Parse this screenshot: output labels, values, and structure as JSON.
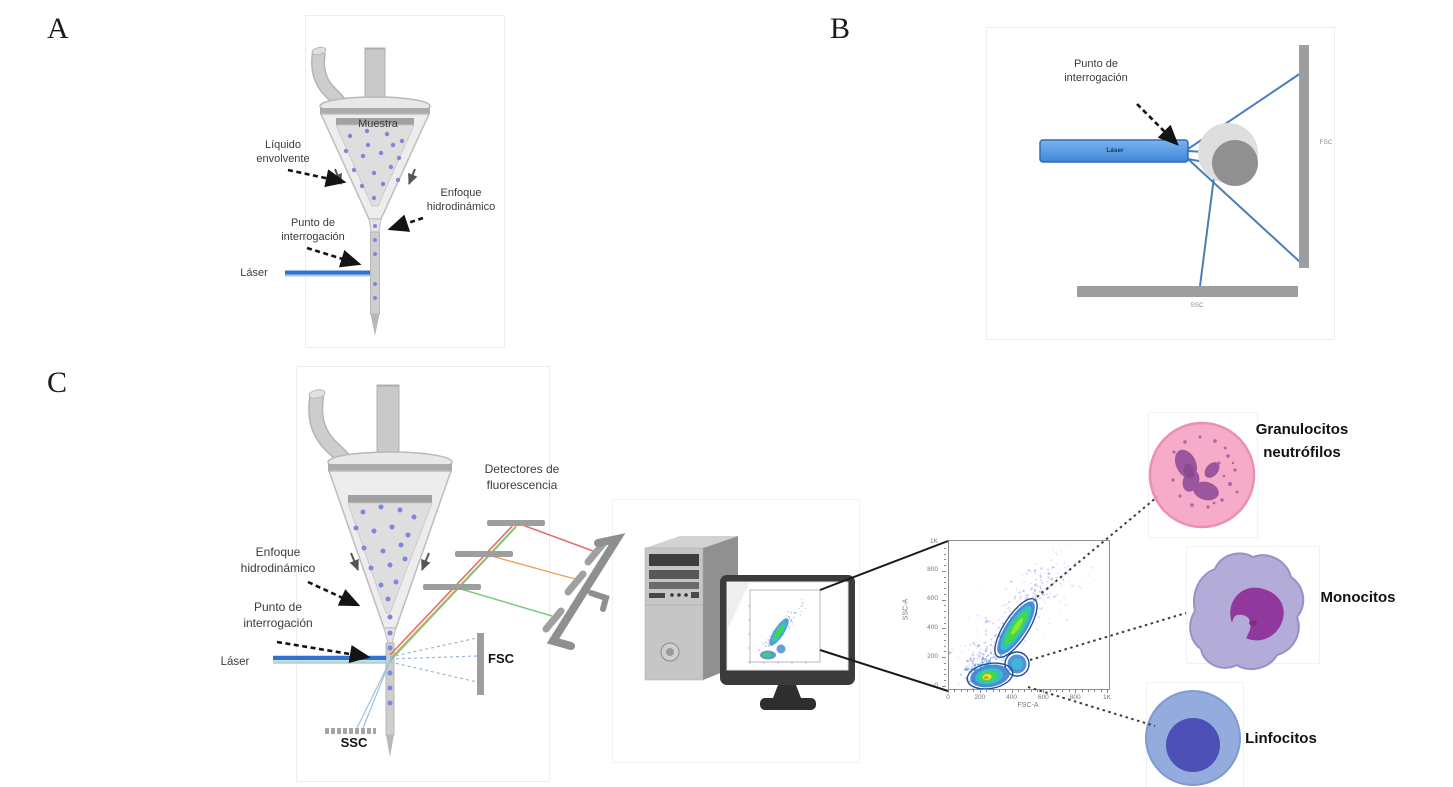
{
  "figure": {
    "panel_a": {
      "letter": "A",
      "muestra": "Muestra",
      "liquido_envolvente": "Líquido\nenvolvente",
      "enfoque_hidrodinamico": "Enfoque\nhidrodinámico",
      "punto_interrogacion": "Punto de\ninterrogación",
      "laser": "Láser"
    },
    "panel_b": {
      "letter": "B",
      "punto_interrogacion": "Punto de\ninterrogación",
      "laser": "Láser",
      "fsc": "FSC",
      "ssc": "SSC"
    },
    "panel_c": {
      "letter": "C",
      "detectores": "Detectores de\nfluorescencia",
      "enfoque_hidrodinamico": "Enfoque\nhidrodinámico",
      "punto_interrogacion": "Punto de\ninterrogación",
      "laser": "Láser",
      "fsc": "FSC",
      "ssc": "SSC",
      "plot": {
        "xlabel": "FSC-A",
        "ylabel": "SSC-A",
        "x_ticks": [
          "0",
          "200",
          "400",
          "600",
          "800",
          "1K"
        ],
        "y_ticks": [
          "0",
          "200",
          "400",
          "600",
          "800",
          "1K"
        ],
        "gated_populations": [
          "Granulocitos neutrófilos",
          "Monocitos",
          "Linfocitos"
        ]
      },
      "cells": {
        "granulocitos": "Granulocitos\nneutrófilos",
        "monocitos": "Monocitos",
        "linfocitos": "Linfocitos"
      }
    },
    "colors": {
      "laser_blue": "#2f74cc",
      "detector_gray": "#9e9e9e",
      "red_line": "#e07070",
      "orange_line": "#eaa55c",
      "green_line": "#7cc87c",
      "granulocyte_pink": "#f6abc9",
      "monocyte_lavender": "#b4acd8",
      "lymphocyte_blue": "#93abdd"
    }
  }
}
